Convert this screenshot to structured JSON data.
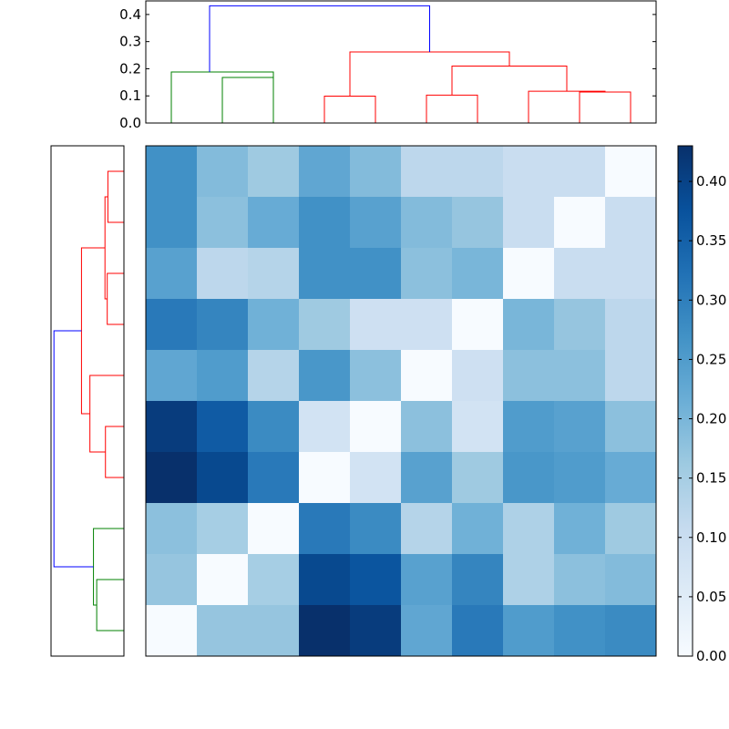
{
  "chart_data": [
    {
      "type": "dendrogram",
      "orientation": "top",
      "ylim": [
        0,
        0.45
      ],
      "yticks": [
        "0.0",
        "0.1",
        "0.2",
        "0.3",
        "0.4"
      ],
      "grid": false,
      "links": [
        {
          "color": "#008000",
          "legs": [
            0.5,
            2.5
          ],
          "from": [
            0,
            0
          ],
          "height": 0.188
        },
        {
          "color": "#008000",
          "legs": [
            1.5,
            2.5
          ],
          "from": [
            0,
            0
          ],
          "height": 0.168
        },
        {
          "color": "#ff0000",
          "legs": [
            3.5,
            4.5
          ],
          "from": [
            0,
            0
          ],
          "height": 0.099
        },
        {
          "color": "#ff0000",
          "legs": [
            5.5,
            6.5
          ],
          "from": [
            0,
            0
          ],
          "height": 0.103
        },
        {
          "color": "#ff0000",
          "legs": [
            8.5,
            9.5
          ],
          "from": [
            0,
            0
          ],
          "height": 0.114
        },
        {
          "color": "#ff0000",
          "legs": [
            7.5,
            9.0
          ],
          "from": [
            0,
            0.114
          ],
          "height": 0.117
        },
        {
          "color": "#ff0000",
          "legs": [
            6.0,
            8.25
          ],
          "from": [
            0.103,
            0.117
          ],
          "height": 0.21
        },
        {
          "color": "#ff0000",
          "legs": [
            4.0,
            7.125
          ],
          "from": [
            0.099,
            0.21
          ],
          "height": 0.262
        },
        {
          "color": "#0000ff",
          "legs": [
            1.25,
            5.5625
          ],
          "from": [
            0.188,
            0.262
          ],
          "height": 0.432
        }
      ]
    },
    {
      "type": "dendrogram",
      "orientation": "left",
      "xlim": [
        0.45,
        0
      ],
      "grid": false,
      "links": [
        {
          "color": "#ff0000",
          "legs": [
            0.5,
            1.5
          ],
          "from": [
            0,
            0
          ],
          "height": 0.099
        },
        {
          "color": "#ff0000",
          "legs": [
            2.5,
            3.5
          ],
          "from": [
            0,
            0
          ],
          "height": 0.103
        },
        {
          "color": "#ff0000",
          "legs": [
            1.0,
            3.0
          ],
          "from": [
            0.099,
            0.103
          ],
          "height": 0.117
        },
        {
          "color": "#ff0000",
          "legs": [
            5.5,
            6.5
          ],
          "from": [
            0,
            0
          ],
          "height": 0.114
        },
        {
          "color": "#ff0000",
          "legs": [
            4.5,
            6.0
          ],
          "from": [
            0,
            0.114
          ],
          "height": 0.21
        },
        {
          "color": "#ff0000",
          "legs": [
            2.0,
            5.25
          ],
          "from": [
            0.117,
            0.21
          ],
          "height": 0.262
        },
        {
          "color": "#008000",
          "legs": [
            8.5,
            9.5
          ],
          "from": [
            0,
            0
          ],
          "height": 0.168
        },
        {
          "color": "#008000",
          "legs": [
            7.5,
            9.0
          ],
          "from": [
            0,
            0.168
          ],
          "height": 0.188
        },
        {
          "color": "#0000ff",
          "legs": [
            3.625,
            8.25
          ],
          "from": [
            0.262,
            0.188
          ],
          "height": 0.432
        }
      ]
    },
    {
      "type": "heatmap",
      "colormap": "Blues",
      "vmin": 0,
      "vmax": 0.43,
      "grid": false,
      "values": [
        [
          0.27,
          0.19,
          0.16,
          0.23,
          0.19,
          0.12,
          0.12,
          0.1,
          0.1,
          0.0
        ],
        [
          0.27,
          0.18,
          0.22,
          0.27,
          0.24,
          0.19,
          0.17,
          0.1,
          0.0,
          0.1
        ],
        [
          0.24,
          0.12,
          0.13,
          0.27,
          0.27,
          0.18,
          0.2,
          0.0,
          0.1,
          0.1
        ],
        [
          0.31,
          0.29,
          0.21,
          0.16,
          0.09,
          0.09,
          0.0,
          0.2,
          0.17,
          0.12
        ],
        [
          0.23,
          0.25,
          0.13,
          0.26,
          0.18,
          0.0,
          0.09,
          0.18,
          0.18,
          0.12
        ],
        [
          0.41,
          0.36,
          0.28,
          0.08,
          0.0,
          0.18,
          0.08,
          0.25,
          0.24,
          0.18
        ],
        [
          0.43,
          0.39,
          0.31,
          0.0,
          0.08,
          0.24,
          0.16,
          0.26,
          0.25,
          0.22
        ],
        [
          0.18,
          0.15,
          0.0,
          0.31,
          0.28,
          0.13,
          0.21,
          0.14,
          0.21,
          0.16
        ],
        [
          0.17,
          0.0,
          0.15,
          0.39,
          0.37,
          0.24,
          0.29,
          0.14,
          0.18,
          0.19
        ],
        [
          0.0,
          0.17,
          0.17,
          0.43,
          0.41,
          0.23,
          0.31,
          0.25,
          0.27,
          0.28
        ]
      ],
      "colorbar": {
        "ticks": [
          "0.00",
          "0.05",
          "0.10",
          "0.15",
          "0.20",
          "0.25",
          "0.30",
          "0.35",
          "0.40"
        ]
      }
    }
  ]
}
